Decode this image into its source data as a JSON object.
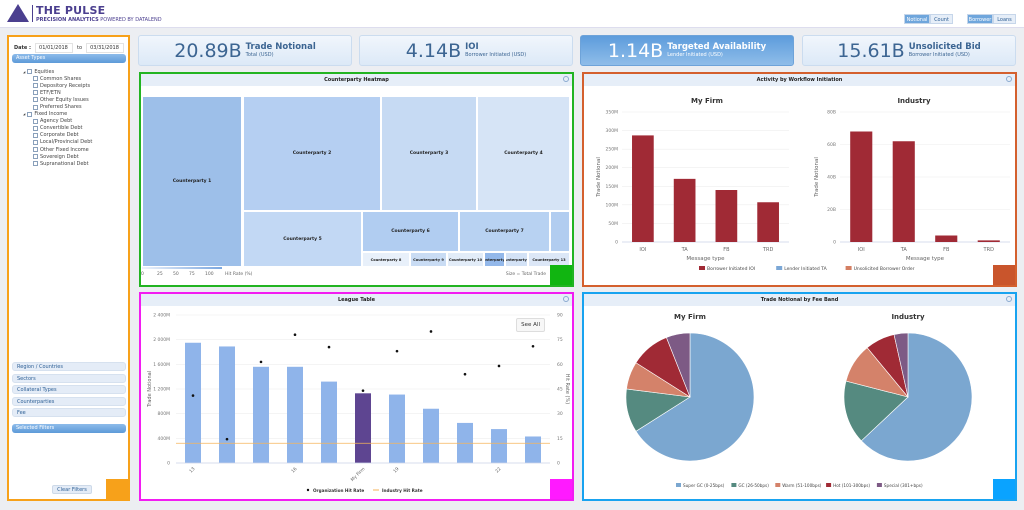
{
  "header": {
    "brand": "THE PULSE",
    "tagline_bold": "PRECISION ANALYTICS",
    "tagline_rest": " POWERED BY DATALEND",
    "toggles": [
      {
        "label": "Notional",
        "active": true
      },
      {
        "label": "Count",
        "active": false
      },
      {
        "label": "Borrower",
        "active": true
      },
      {
        "label": "Loans",
        "active": false
      }
    ]
  },
  "filters": {
    "date_label": "Date :",
    "date_from": "01/01/2018",
    "date_to_label": "to",
    "date_to": "03/31/2018",
    "asset_types_title": "Asset Types",
    "asset_groups": [
      {
        "label": "Equities",
        "items": [
          "Common Shares",
          "Depository Receipts",
          "ETF/ETN",
          "Other Equity Issues",
          "Preferred Shares"
        ]
      },
      {
        "label": "Fixed Income",
        "items": [
          "Agency Debt",
          "Convertible Debt",
          "Corporate Debt",
          "Local/Provincial Debt",
          "Other Fixed Income",
          "Sovereign Debt",
          "Supranational Debt"
        ]
      }
    ],
    "sections": [
      "Region / Countries",
      "Sectors",
      "Collateral Types",
      "Counterparties",
      "Fee"
    ],
    "selected_title": "Selected Filters",
    "clear_label": "Clear Filters"
  },
  "kpis": [
    {
      "value": "20.89B",
      "title": "Trade Notional",
      "sub": "Total (USD)"
    },
    {
      "value": "4.14B",
      "title": "IOI",
      "sub": "Borrower Initiated (USD)"
    },
    {
      "value": "1.14B",
      "title": "Targeted Availability",
      "sub": "Lender Initiated (USD)",
      "active": true
    },
    {
      "value": "15.61B",
      "title": "Unsolicited Bid",
      "sub": "Borrower Initiated (USD)"
    }
  ],
  "heatmap": {
    "title": "Counterparty Heatmap",
    "tiles": [
      "Counterparty 1",
      "Counterparty 2",
      "Counterparty 3",
      "Counterparty 4",
      "Counterparty 5",
      "Counterparty 6",
      "Counterparty 7",
      "",
      "Counterparty 8",
      "Counterparty 9",
      "Counterparty 10",
      "Counterparty 11",
      "Counterparty 12",
      "Counterparty 13"
    ],
    "legend_ticks": [
      "0",
      "25",
      "50",
      "75",
      "100"
    ],
    "legend_label": "Hit Rate (%)",
    "size_label": "Size = Total Trade"
  },
  "activity": {
    "title": "Activity by Workflow Initiation"
  },
  "league": {
    "title": "League Table",
    "see_all": "See All"
  },
  "feeband": {
    "title": "Trade Notional by Fee Band"
  },
  "colors": {
    "accent": "#5d9cdc",
    "bar_red": "#a02a35",
    "league_bar": "#8fb4ea",
    "league_myfirm": "#5e4591",
    "hit_line": "#f5b35a"
  },
  "chart_data": [
    {
      "type": "bar",
      "title": "My Firm",
      "xlabel": "Message type",
      "ylabel": "Trade Notional",
      "categories": [
        "IOI",
        "TA",
        "FB",
        "TRD"
      ],
      "ylim": [
        0,
        350
      ],
      "yticks": [
        "0",
        "50M",
        "100M",
        "150M",
        "200M",
        "250M",
        "300M",
        "350M"
      ],
      "series": [
        {
          "name": "Borrower Initiated IOI",
          "color": "#a02a35",
          "values": [
            287,
            170,
            140,
            107
          ]
        }
      ],
      "unit": "M",
      "legend": [
        {
          "name": "Borrower Initiated IOI",
          "color": "#a02a35"
        },
        {
          "name": "Lender Initiated TA",
          "color": "#7ba7d6"
        },
        {
          "name": "Unsolicited Borrower Order",
          "color": "#d47f63"
        }
      ]
    },
    {
      "type": "bar",
      "title": "Industry",
      "xlabel": "Message type",
      "ylabel": "Trade Notional",
      "categories": [
        "IOI",
        "TA",
        "FB",
        "TRD"
      ],
      "ylim": [
        0,
        80
      ],
      "yticks": [
        "0",
        "20B",
        "40B",
        "60B",
        "80B"
      ],
      "series": [
        {
          "name": "Borrower Initiated IOI",
          "color": "#a02a35",
          "values": [
            68,
            62,
            4,
            1
          ]
        }
      ],
      "unit": "B"
    },
    {
      "type": "bar",
      "title": "League Table",
      "ylabel": "Trade Notional",
      "y2label": "Hit Rate (%)",
      "ylim": [
        0,
        2400
      ],
      "y2lim": [
        0,
        90
      ],
      "yticks": [
        "0",
        "400M",
        "800M",
        "1 200M",
        "1 600M",
        "2 000M",
        "2 400M"
      ],
      "y2ticks": [
        "0",
        "15",
        "30",
        "45",
        "60",
        "75",
        "90"
      ],
      "categories": [
        "13",
        "",
        "",
        "16",
        "",
        "My Firm",
        "19",
        "",
        "",
        "22",
        ""
      ],
      "values": [
        1950,
        1890,
        1560,
        1560,
        1320,
        1130,
        1110,
        880,
        650,
        550,
        430
      ],
      "hit_rate": [
        41,
        14.5,
        61.5,
        78,
        70.5,
        44,
        68,
        80,
        54,
        59,
        71
      ],
      "industry_hit_rate": 12,
      "legend": [
        "Organization Hit Rate",
        "Industry Hit Rate"
      ]
    },
    {
      "type": "pie",
      "title": "My Firm",
      "categories": [
        "Super GC (0-25bps)",
        "GC (26-50bps)",
        "Warm (51-100bps)",
        "Hot (101-300bps)",
        "Special (301+bps)"
      ],
      "values": [
        66,
        11,
        7,
        10,
        6
      ],
      "colors": [
        "#7ba7d0",
        "#558a80",
        "#d4826a",
        "#a02a35",
        "#7d5a85"
      ]
    },
    {
      "type": "pie",
      "title": "Industry",
      "categories": [
        "Super GC (0-25bps)",
        "GC (26-50bps)",
        "Warm (51-100bps)",
        "Hot (101-300bps)",
        "Special (301+bps)"
      ],
      "values": [
        63,
        16,
        10,
        7.5,
        3.5
      ],
      "colors": [
        "#7ba7d0",
        "#558a80",
        "#d4826a",
        "#a02a35",
        "#7d5a85"
      ]
    }
  ]
}
